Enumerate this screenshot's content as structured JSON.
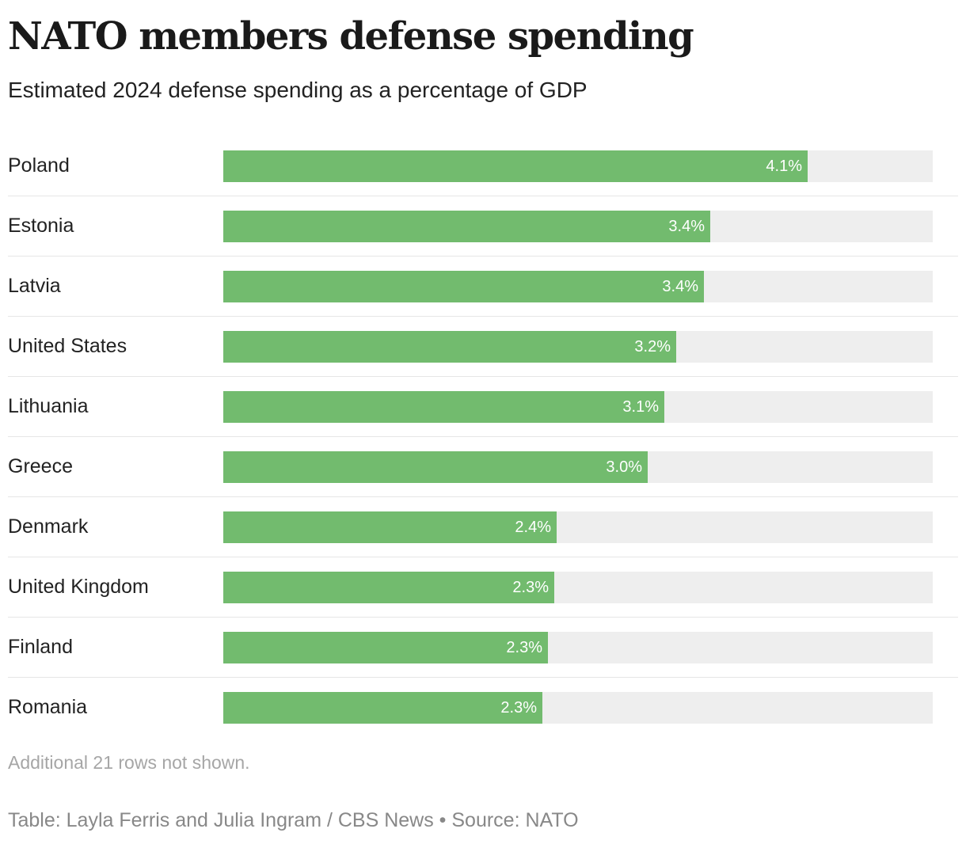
{
  "chart_data": {
    "type": "bar",
    "orientation": "horizontal",
    "title": "NATO members defense spending",
    "subtitle": "Estimated 2024 defense spending as a percentage of GDP",
    "categories": [
      "Poland",
      "Estonia",
      "Latvia",
      "United States",
      "Lithuania",
      "Greece",
      "Denmark",
      "United Kingdom",
      "Finland",
      "Romania"
    ],
    "values": [
      4.12,
      3.43,
      3.39,
      3.19,
      3.11,
      2.99,
      2.35,
      2.33,
      2.29,
      2.25
    ],
    "value_labels": [
      "4.1%",
      "3.4%",
      "3.4%",
      "3.2%",
      "3.1%",
      "3.0%",
      "2.4%",
      "2.3%",
      "2.3%",
      "2.3%"
    ],
    "xlim": [
      0,
      5
    ],
    "grid": false,
    "legend": "none",
    "bar_color": "#72bb6e",
    "track_color": "#eeeeee",
    "note": "Additional 21 rows not shown.",
    "footer": "Table: Layla Ferris and Julia Ingram / CBS News • Source: NATO"
  }
}
